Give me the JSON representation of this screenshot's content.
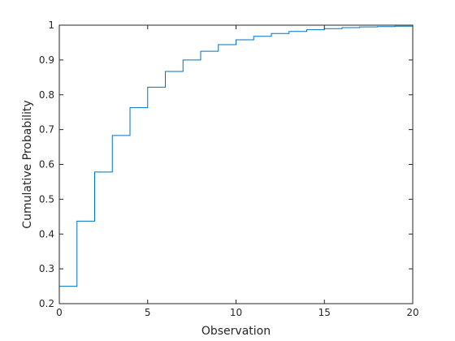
{
  "chart_data": {
    "type": "line",
    "style": "stairs",
    "title": "",
    "xlabel": "Observation",
    "ylabel": "Cumulative Probability",
    "xlim": [
      0,
      20
    ],
    "ylim": [
      0.2,
      1
    ],
    "grid": false,
    "box": true,
    "xticks": [
      0,
      5,
      10,
      15,
      20
    ],
    "yticks": [
      0.2,
      0.3,
      0.4,
      0.5,
      0.6,
      0.7,
      0.8,
      0.9,
      1
    ],
    "xtick_labels": [
      "0",
      "5",
      "10",
      "15",
      "20"
    ],
    "ytick_labels": [
      "0.2",
      "0.3",
      "0.4",
      "0.5",
      "0.6",
      "0.7",
      "0.8",
      "0.9",
      "1"
    ],
    "line_color": "#0072BD",
    "series": [
      {
        "x": [
          0,
          1,
          2,
          3,
          4,
          5,
          6,
          7,
          8,
          9,
          10,
          11,
          12,
          13,
          14,
          15,
          16,
          17,
          18,
          19,
          20
        ],
        "y": [
          0.25,
          0.437,
          0.578,
          0.683,
          0.763,
          0.822,
          0.867,
          0.9,
          0.925,
          0.944,
          0.958,
          0.968,
          0.976,
          0.982,
          0.987,
          0.99,
          0.993,
          0.995,
          0.996,
          0.997,
          0.998
        ]
      }
    ]
  }
}
